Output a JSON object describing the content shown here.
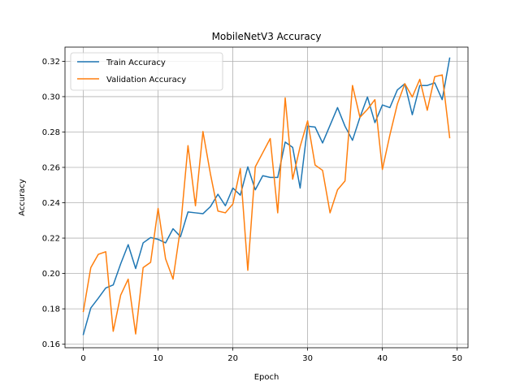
{
  "chart_data": {
    "type": "line",
    "title": "MobileNetV3 Accuracy",
    "xlabel": "Epoch",
    "ylabel": "Accuracy",
    "xlim": [
      -2.45,
      51.45
    ],
    "ylim": [
      0.158,
      0.328
    ],
    "xticks": [
      0,
      10,
      20,
      30,
      40,
      50
    ],
    "xtick_labels": [
      "0",
      "10",
      "20",
      "30",
      "40",
      "50"
    ],
    "yticks": [
      0.16,
      0.18,
      0.2,
      0.22,
      0.24,
      0.26,
      0.28,
      0.3,
      0.32
    ],
    "ytick_labels": [
      "0.16",
      "0.18",
      "0.20",
      "0.22",
      "0.24",
      "0.26",
      "0.28",
      "0.30",
      "0.32"
    ],
    "grid": true,
    "legend_position": "top-left",
    "series": [
      {
        "name": "Train Accuracy",
        "color": "#1f77b4",
        "x": [
          0,
          1,
          2,
          3,
          4,
          5,
          6,
          7,
          8,
          9,
          10,
          11,
          12,
          13,
          14,
          15,
          16,
          17,
          18,
          19,
          20,
          21,
          22,
          23,
          24,
          25,
          26,
          27,
          28,
          29,
          30,
          31,
          32,
          33,
          34,
          35,
          36,
          37,
          38,
          39,
          40,
          41,
          42,
          43,
          44,
          45,
          46,
          47,
          48,
          49
        ],
        "values": [
          0.1655,
          0.1805,
          0.186,
          0.1918,
          0.1935,
          0.2055,
          0.2163,
          0.2028,
          0.2173,
          0.2203,
          0.2193,
          0.2173,
          0.2253,
          0.2208,
          0.2348,
          0.2343,
          0.2338,
          0.2378,
          0.2448,
          0.2383,
          0.2483,
          0.2443,
          0.2603,
          0.2473,
          0.2553,
          0.2543,
          0.2543,
          0.2743,
          0.2713,
          0.2483,
          0.2833,
          0.2828,
          0.2738,
          0.2838,
          0.2938,
          0.2833,
          0.2753,
          0.2883,
          0.2998,
          0.2853,
          0.2953,
          0.2938,
          0.3038,
          0.3073,
          0.2898,
          0.3063,
          0.3063,
          0.3078,
          0.2983,
          0.3218
        ]
      },
      {
        "name": "Validation Accuracy",
        "color": "#ff7f0e",
        "x": [
          0,
          1,
          2,
          3,
          4,
          5,
          6,
          7,
          8,
          9,
          10,
          11,
          12,
          13,
          14,
          15,
          16,
          17,
          18,
          19,
          20,
          21,
          22,
          23,
          24,
          25,
          26,
          27,
          28,
          29,
          30,
          31,
          32,
          33,
          34,
          35,
          36,
          37,
          38,
          39,
          40,
          41,
          42,
          43,
          44,
          45,
          46,
          47,
          48,
          49
        ],
        "values": [
          0.1785,
          0.2033,
          0.2108,
          0.2123,
          0.1673,
          0.1878,
          0.1968,
          0.1658,
          0.2033,
          0.2063,
          0.2368,
          0.2083,
          0.1968,
          0.2258,
          0.2723,
          0.2383,
          0.2803,
          0.2563,
          0.2353,
          0.2343,
          0.2393,
          0.2593,
          0.2018,
          0.2603,
          0.2683,
          0.2763,
          0.2343,
          0.2993,
          0.2533,
          0.2718,
          0.2863,
          0.2613,
          0.2583,
          0.2343,
          0.2473,
          0.2523,
          0.3063,
          0.2883,
          0.2928,
          0.2983,
          0.2588,
          0.2783,
          0.2958,
          0.3073,
          0.2998,
          0.3098,
          0.2923,
          0.3113,
          0.3123,
          0.2768
        ]
      }
    ]
  }
}
